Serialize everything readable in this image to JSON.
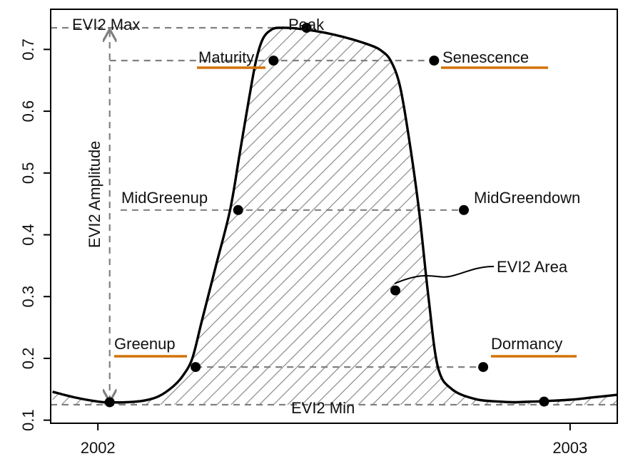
{
  "chart_data": {
    "type": "line",
    "title": "",
    "xlabel": "",
    "ylabel": "",
    "xlim": [
      2001.9,
      2003.1
    ],
    "ylim": [
      0.095,
      0.765
    ],
    "x_ticks": [
      2002,
      2003
    ],
    "x_tick_labels": [
      "2002",
      "2003"
    ],
    "y_ticks": [
      0.1,
      0.2,
      0.3,
      0.4,
      0.5,
      0.6,
      0.7
    ],
    "y_tick_labels": [
      "0.1",
      "0.2",
      "0.3",
      "0.4",
      "0.5",
      "0.6",
      "0.7"
    ],
    "series": [
      {
        "name": "EVI2",
        "x": [
          2001.904,
          2001.95,
          2002.0,
          2002.02,
          2002.06,
          2002.1,
          2002.13,
          2002.16,
          2002.18,
          2002.2,
          2002.22,
          2002.25,
          2002.28,
          2002.3,
          2002.32,
          2002.335,
          2002.35,
          2002.37,
          2002.39,
          2002.42,
          2002.46,
          2002.5,
          2002.54,
          2002.58,
          2002.6,
          2002.62,
          2002.64,
          2002.66,
          2002.68,
          2002.7,
          2002.72,
          2002.75,
          2002.8,
          2002.85,
          2002.88,
          2002.92,
          2002.95,
          2003.0,
          2003.05,
          2003.1
        ],
        "y": [
          0.146,
          0.137,
          0.13,
          0.129,
          0.129,
          0.132,
          0.139,
          0.155,
          0.172,
          0.2,
          0.26,
          0.35,
          0.44,
          0.53,
          0.62,
          0.682,
          0.718,
          0.733,
          0.735,
          0.734,
          0.73,
          0.724,
          0.716,
          0.706,
          0.698,
          0.682,
          0.64,
          0.55,
          0.44,
          0.3,
          0.186,
          0.15,
          0.134,
          0.13,
          0.129,
          0.13,
          0.131,
          0.133,
          0.137,
          0.141
        ],
        "color": "#000000"
      }
    ],
    "points": [
      {
        "name": "EVI2 Min point (2002)",
        "x": 2002.025,
        "y": 0.129
      },
      {
        "name": "Greenup",
        "x": 2002.207,
        "y": 0.186
      },
      {
        "name": "MidGreenup",
        "x": 2002.297,
        "y": 0.44
      },
      {
        "name": "Maturity",
        "x": 2002.372,
        "y": 0.682
      },
      {
        "name": "Peak",
        "x": 2002.442,
        "y": 0.735
      },
      {
        "name": "EVI2 Area marker",
        "x": 2002.63,
        "y": 0.31
      },
      {
        "name": "Senescence",
        "x": 2002.712,
        "y": 0.682
      },
      {
        "name": "MidGreendown",
        "x": 2002.775,
        "y": 0.44
      },
      {
        "name": "Dormancy",
        "x": 2002.816,
        "y": 0.186
      },
      {
        "name": "EVI2 Min point (2003)",
        "x": 2002.945,
        "y": 0.13
      }
    ],
    "reference_lines": {
      "evi2_max": 0.735,
      "evi2_min": 0.125,
      "maturity_level": 0.682,
      "midgreen_level": 0.44,
      "greenup_level": 0.186
    },
    "annotations": {
      "evi2_max": "EVI2 Max",
      "evi2_min": "EVI2 Min",
      "amplitude": "EVI2 Amplitude",
      "peak": "Peak",
      "maturity": "Maturity",
      "senescence": "Senescence",
      "midgreenup": "MidGreenup",
      "midgreendown": "MidGreendown",
      "greenup": "Greenup",
      "dormancy": "Dormancy",
      "area": "EVI2 Area"
    },
    "colors": {
      "curve": "#000000",
      "points": "#000000",
      "dashed": "#808080",
      "hatch": "#8a8a8a",
      "underline": "#d4720a",
      "axis": "#000000"
    }
  }
}
